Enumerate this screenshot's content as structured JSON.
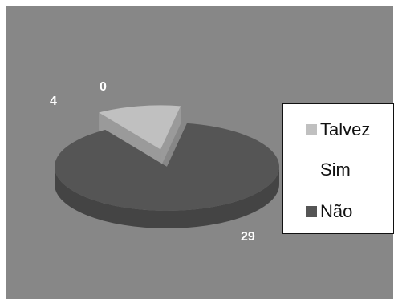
{
  "chart_data": {
    "type": "pie",
    "style": "3d-exploded",
    "categories": [
      "Talvez",
      "Sim",
      "Não"
    ],
    "values": [
      4,
      0,
      29
    ],
    "data_labels": [
      "4",
      "0",
      "29"
    ],
    "legend_placement": "right",
    "grid": false,
    "colors": {
      "Talvez": "#c0c0c0",
      "Sim": "#ffffff",
      "Não": "#555555",
      "plot_background": "#878787",
      "frame": "#ffffff"
    }
  }
}
